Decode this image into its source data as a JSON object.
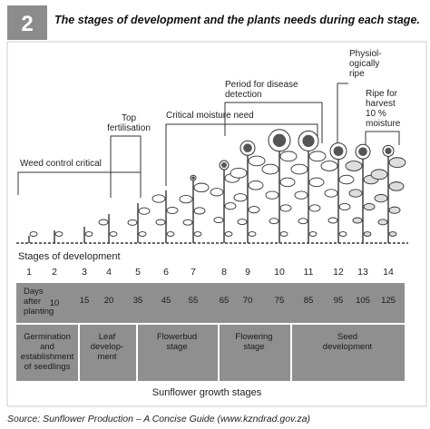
{
  "header": {
    "number": "2",
    "title": "The stages of development and the plants needs during each stage."
  },
  "annotations": [
    {
      "label": "Weed control critical"
    },
    {
      "label": "Top\nfertilisation"
    },
    {
      "label": "Critical moisture need"
    },
    {
      "label": "Period for disease\ndetection"
    },
    {
      "label": "Physiol-\nogically\nripe"
    },
    {
      "label": "Ripe for\nharvest\n10 %\nmoisture"
    }
  ],
  "stages_label": "Stages of development",
  "stages": [
    "1",
    "2",
    "3",
    "4",
    "5",
    "6",
    "7",
    "8",
    "9",
    "10",
    "11",
    "12",
    "13",
    "14"
  ],
  "days": {
    "label": "Days\nafter\nplanting",
    "values": [
      10,
      15,
      20,
      35,
      45,
      55,
      65,
      70,
      75,
      85,
      95,
      105,
      125
    ]
  },
  "phases": [
    "Germination\nand\nestablishment\nof seedlings",
    "Leaf\ndevelop-\nment",
    "Flowerbud\nstage",
    "Flowering\nstage",
    "Seed\ndevelopment"
  ],
  "caption": "Sunflower growth stages",
  "source": "Source: Sunflower Production – A Concise Guide (www.kzndrad.gov.za)"
}
